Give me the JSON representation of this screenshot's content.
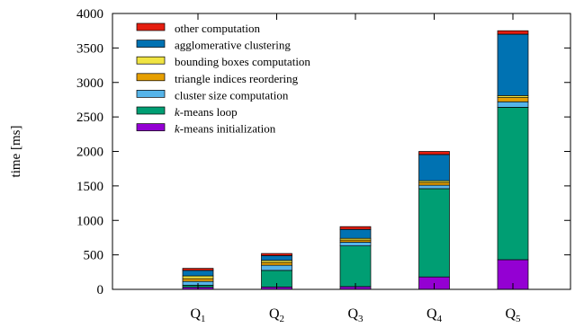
{
  "chart_data": {
    "type": "bar",
    "stacked": true,
    "title": "",
    "xlabel": "",
    "ylabel": "time [ms]",
    "ylim": [
      0,
      4000
    ],
    "yticks": [
      0,
      500,
      1000,
      1500,
      2000,
      2500,
      3000,
      3500,
      4000
    ],
    "grid": false,
    "legend_position": "top-left",
    "categories": [
      {
        "base": "Q",
        "sub": "1"
      },
      {
        "base": "Q",
        "sub": "2"
      },
      {
        "base": "Q",
        "sub": "3"
      },
      {
        "base": "Q",
        "sub": "4"
      },
      {
        "base": "Q",
        "sub": "5"
      }
    ],
    "series": [
      {
        "name": "k-means initialization",
        "name_italic": "k",
        "name_rest": "-means initialization",
        "color": "#9400d3",
        "values": [
          30,
          35,
          40,
          180,
          430
        ]
      },
      {
        "name": "k-means loop",
        "name_italic": "k",
        "name_rest": "-means loop",
        "color": "#009e73",
        "values": [
          30,
          240,
          590,
          1280,
          2210
        ]
      },
      {
        "name": "cluster size computation",
        "color": "#56b4e9",
        "values": [
          55,
          75,
          55,
          50,
          80
        ]
      },
      {
        "name": "triangle indices reordering",
        "color": "#e69f00",
        "values": [
          40,
          40,
          30,
          40,
          60
        ]
      },
      {
        "name": "bounding boxes computation",
        "color": "#f0e442",
        "values": [
          40,
          30,
          25,
          25,
          30
        ]
      },
      {
        "name": "agglomerative clustering",
        "color": "#0072b2",
        "values": [
          80,
          70,
          130,
          380,
          890
        ]
      },
      {
        "name": "other computation",
        "color": "#e51e10",
        "values": [
          30,
          30,
          40,
          45,
          50
        ]
      }
    ]
  }
}
